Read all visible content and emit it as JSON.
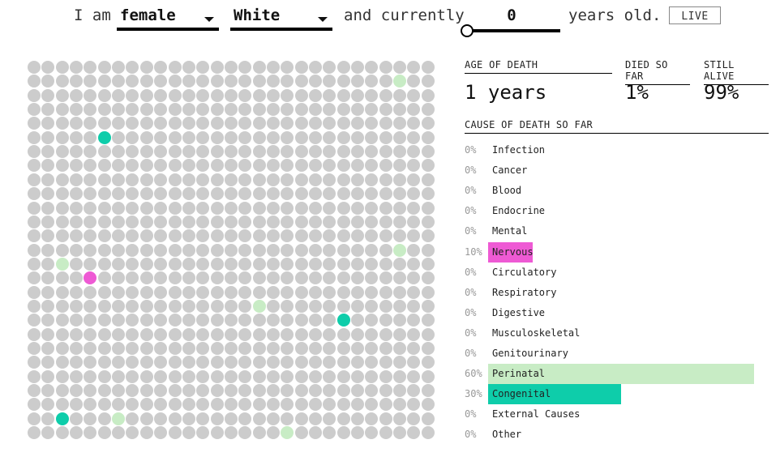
{
  "header": {
    "word_i_am": "I am",
    "sex_select": {
      "value": "female"
    },
    "race_select": {
      "value": "White"
    },
    "word_and_currently": "and currently",
    "age_input": {
      "value": "0"
    },
    "age_slider": {
      "value": 0
    },
    "word_years_old": "years old.",
    "live_button": "LIVE"
  },
  "stats": {
    "age_of_death_label": "AGE OF DEATH",
    "age_of_death_value": "1 years",
    "died_so_far_label": "DIED SO FAR",
    "died_so_far_value": "1%",
    "still_alive_label": "STILL ALIVE",
    "still_alive_value": "99%"
  },
  "causes_header": "CAUSE OF DEATH SO FAR",
  "causes": [
    {
      "pct": "0%",
      "label": "Infection",
      "share": 0,
      "color": ""
    },
    {
      "pct": "0%",
      "label": "Cancer",
      "share": 0,
      "color": ""
    },
    {
      "pct": "0%",
      "label": "Blood",
      "share": 0,
      "color": ""
    },
    {
      "pct": "0%",
      "label": "Endocrine",
      "share": 0,
      "color": ""
    },
    {
      "pct": "0%",
      "label": "Mental",
      "share": 0,
      "color": ""
    },
    {
      "pct": "10%",
      "label": "Nervous",
      "share": 10,
      "color": "#ee5ad4"
    },
    {
      "pct": "0%",
      "label": "Circulatory",
      "share": 0,
      "color": ""
    },
    {
      "pct": "0%",
      "label": "Respiratory",
      "share": 0,
      "color": ""
    },
    {
      "pct": "0%",
      "label": "Digestive",
      "share": 0,
      "color": ""
    },
    {
      "pct": "0%",
      "label": "Musculoskeletal",
      "share": 0,
      "color": ""
    },
    {
      "pct": "0%",
      "label": "Genitourinary",
      "share": 0,
      "color": ""
    },
    {
      "pct": "60%",
      "label": "Perinatal",
      "share": 60,
      "color": "#c8ecc5"
    },
    {
      "pct": "30%",
      "label": "Congenital",
      "share": 30,
      "color": "#0ecdaa"
    },
    {
      "pct": "0%",
      "label": "External Causes",
      "share": 0,
      "color": ""
    },
    {
      "pct": "0%",
      "label": "Other",
      "share": 0,
      "color": ""
    }
  ],
  "grid": {
    "columns": 29,
    "rows": 27,
    "colors": {
      "alive": "#cccccc",
      "Perinatal": "#c8ecc5",
      "Congenital": "#0ecdaa",
      "Nervous": "#ee5ad4"
    },
    "dead": [
      {
        "row": 1,
        "col": 26,
        "cause": "Perinatal"
      },
      {
        "row": 5,
        "col": 5,
        "cause": "Congenital"
      },
      {
        "row": 13,
        "col": 26,
        "cause": "Perinatal"
      },
      {
        "row": 14,
        "col": 2,
        "cause": "Perinatal"
      },
      {
        "row": 15,
        "col": 4,
        "cause": "Nervous"
      },
      {
        "row": 17,
        "col": 16,
        "cause": "Perinatal"
      },
      {
        "row": 18,
        "col": 22,
        "cause": "Congenital"
      },
      {
        "row": 25,
        "col": 2,
        "cause": "Congenital"
      },
      {
        "row": 25,
        "col": 6,
        "cause": "Perinatal"
      },
      {
        "row": 26,
        "col": 18,
        "cause": "Perinatal"
      }
    ]
  }
}
